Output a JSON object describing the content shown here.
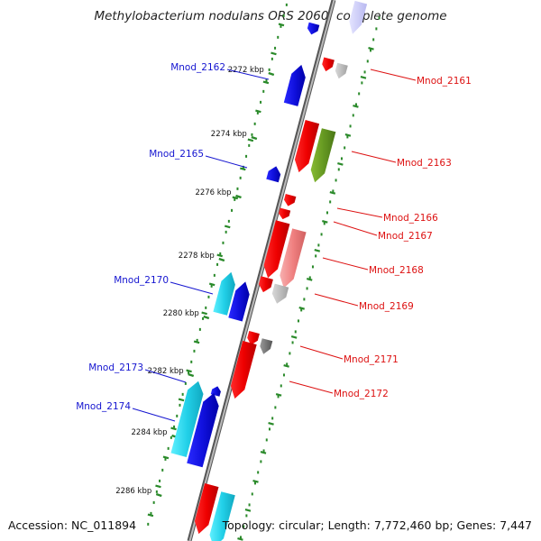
{
  "title": "Methylobacterium nodulans ORS 2060, complete genome",
  "footer": {
    "accession": "Accession: NC_011894",
    "summary": "Topology: circular; Length: 7,772,460 bp; Genes: 7,447"
  },
  "colors": {
    "left_label": "#1515d0",
    "right_label": "#dd1111",
    "backbone": "#888888",
    "tick": "#2a8a2a",
    "red": "#ee0000",
    "pink": "#f08080",
    "blue": "#1010dd",
    "cyan": "#22d0e8",
    "olive": "#669922",
    "gray": "#777777"
  },
  "ticks": [
    "2272 kbp",
    "2274 kbp",
    "2276 kbp",
    "2278 kbp",
    "2280 kbp",
    "2282 kbp",
    "2284 kbp",
    "2286 kbp"
  ],
  "left_genes": [
    "Mnod_2162",
    "Mnod_2165",
    "Mnod_2170",
    "Mnod_2173",
    "Mnod_2174"
  ],
  "right_genes": [
    "Mnod_2161",
    "Mnod_2163",
    "Mnod_2166",
    "Mnod_2167",
    "Mnod_2168",
    "Mnod_2169",
    "Mnod_2171",
    "Mnod_2172"
  ]
}
